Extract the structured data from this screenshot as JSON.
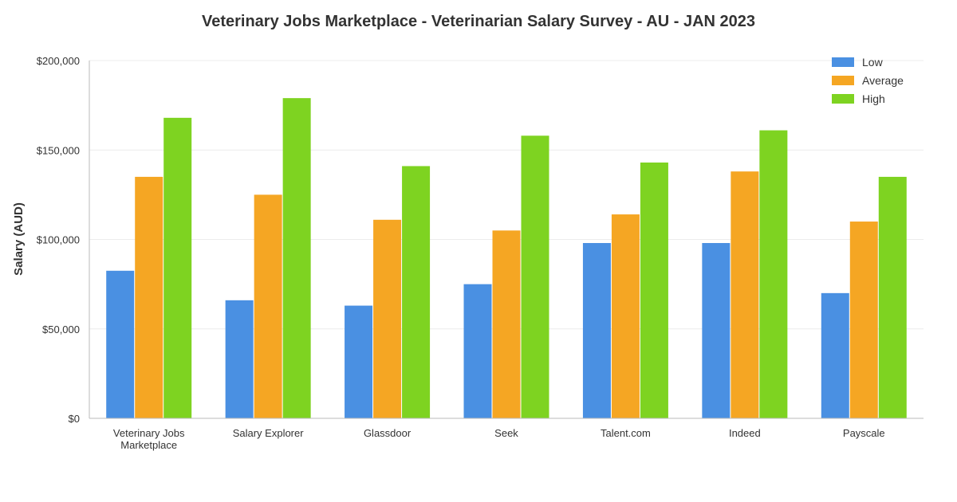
{
  "chart_data": {
    "type": "bar",
    "title": "Veterinary Jobs Marketplace - Veterinarian Salary Survey - AU - JAN 2023",
    "xlabel": "",
    "ylabel": "Salary (AUD)",
    "ylim": [
      0,
      200000
    ],
    "yticks": [
      0,
      50000,
      100000,
      150000,
      200000
    ],
    "ytick_labels": [
      "$0",
      "$50,000",
      "$100,000",
      "$150,000",
      "$200,000"
    ],
    "categories": [
      [
        "Veterinary Jobs",
        "Marketplace"
      ],
      [
        "Salary Explorer"
      ],
      [
        "Glassdoor"
      ],
      [
        "Seek"
      ],
      [
        "Talent.com"
      ],
      [
        "Indeed"
      ],
      [
        "Payscale"
      ]
    ],
    "series": [
      {
        "name": "Low",
        "color": "#4a90e2",
        "values": [
          82500,
          66000,
          63000,
          75000,
          98000,
          98000,
          70000
        ]
      },
      {
        "name": "Average",
        "color": "#f5a623",
        "values": [
          135000,
          125000,
          111000,
          105000,
          114000,
          138000,
          110000
        ]
      },
      {
        "name": "High",
        "color": "#7ed321",
        "values": [
          168000,
          179000,
          141000,
          158000,
          143000,
          161000,
          135000
        ]
      }
    ],
    "grid": true,
    "legend_position": "top-right"
  }
}
